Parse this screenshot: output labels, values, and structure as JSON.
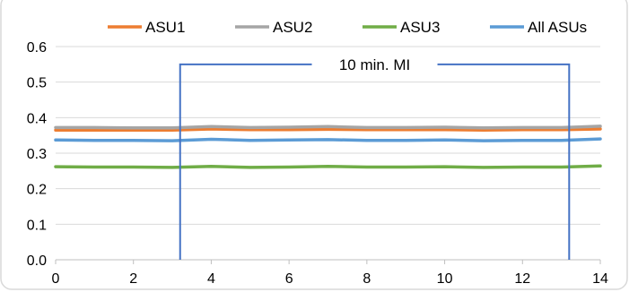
{
  "chart_data": {
    "type": "line",
    "title": "",
    "xlabel": "",
    "ylabel": "",
    "xlim": [
      0,
      14
    ],
    "ylim": [
      0,
      0.6
    ],
    "x_ticks": [
      "0",
      "2",
      "4",
      "6",
      "8",
      "10",
      "12",
      "14"
    ],
    "y_ticks": [
      "0.0",
      "0.1",
      "0.2",
      "0.3",
      "0.4",
      "0.5",
      "0.6"
    ],
    "grid": "horizontal",
    "legend_position": "top",
    "x": [
      0,
      1,
      2,
      3,
      4,
      5,
      6,
      7,
      8,
      9,
      10,
      11,
      12,
      13,
      14
    ],
    "series": [
      {
        "name": "ASU1",
        "color": "#ED7D31",
        "values": [
          0.365,
          0.365,
          0.365,
          0.365,
          0.368,
          0.366,
          0.366,
          0.367,
          0.366,
          0.366,
          0.366,
          0.365,
          0.366,
          0.366,
          0.368
        ]
      },
      {
        "name": "ASU2",
        "color": "#A5A5A5",
        "values": [
          0.372,
          0.372,
          0.371,
          0.371,
          0.375,
          0.372,
          0.373,
          0.375,
          0.372,
          0.372,
          0.373,
          0.371,
          0.372,
          0.372,
          0.376
        ]
      },
      {
        "name": "ASU3",
        "color": "#70AD47",
        "values": [
          0.262,
          0.261,
          0.261,
          0.26,
          0.263,
          0.26,
          0.261,
          0.263,
          0.261,
          0.261,
          0.262,
          0.26,
          0.261,
          0.261,
          0.264
        ]
      },
      {
        "name": "All ASUs",
        "color": "#5B9BD5",
        "values": [
          0.337,
          0.336,
          0.336,
          0.335,
          0.339,
          0.336,
          0.337,
          0.338,
          0.336,
          0.336,
          0.337,
          0.335,
          0.336,
          0.336,
          0.34
        ]
      }
    ],
    "annotations": [
      {
        "label": "10 min. MI",
        "x_start": 3.2,
        "x_end": 13.2,
        "y": 0.55,
        "color": "#4472C4"
      }
    ]
  }
}
